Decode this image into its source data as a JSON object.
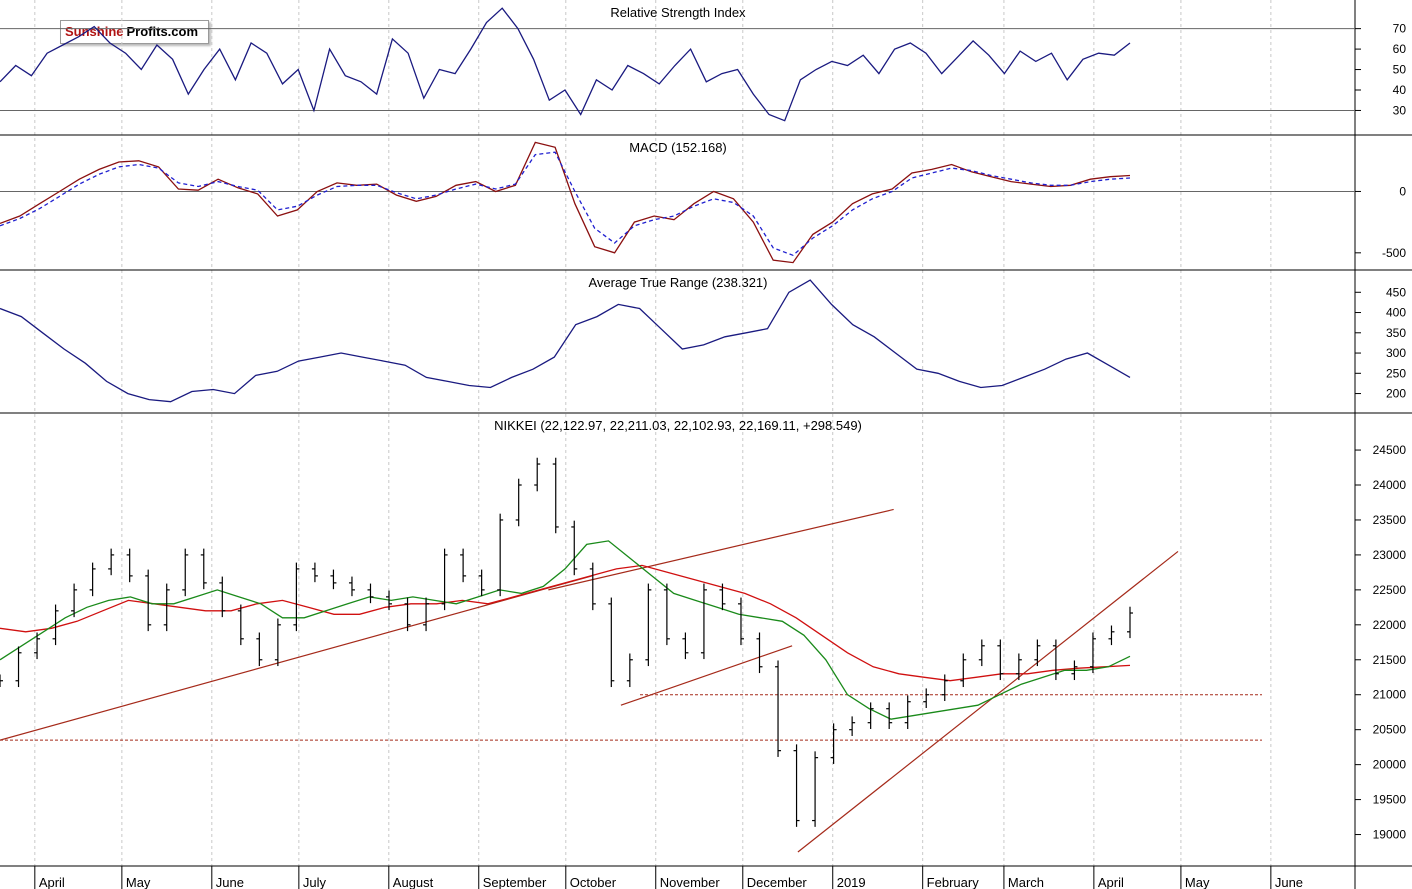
{
  "logo": {
    "part1": "Sunshine",
    "part2": "Profits.com"
  },
  "colors": {
    "rsi": "#1a1a80",
    "macd": "#8b1010",
    "macd_signal": "#2020d0",
    "atr": "#1a1a80",
    "ma_short": "#1a8a1a",
    "ma_long": "#d01010",
    "trendline": "#a52a1a",
    "bars": "#000000"
  },
  "x_axis": {
    "labels": [
      "April",
      "May",
      "June",
      "July",
      "August",
      "September",
      "October",
      "November",
      "December",
      "2019",
      "February",
      "March",
      "April",
      "May",
      "June"
    ]
  },
  "chart_data": [
    {
      "type": "line",
      "title": "Relative Strength Index",
      "y_ticks": [
        "70",
        "60",
        "50",
        "40",
        "30"
      ],
      "ylim": [
        18,
        84
      ],
      "reference_lines": [
        70,
        30
      ],
      "series": [
        {
          "values": [
            44,
            52,
            47,
            58,
            62,
            66,
            71,
            63,
            58,
            50,
            62,
            55,
            38,
            50,
            60,
            45,
            63,
            58,
            43,
            50,
            30,
            60,
            47,
            44,
            38,
            65,
            58,
            36,
            50,
            48,
            60,
            73,
            80,
            70,
            55,
            35,
            40,
            28,
            45,
            40,
            52,
            48,
            43,
            52,
            60,
            44,
            48,
            50,
            38,
            28,
            25,
            45,
            50,
            54,
            52,
            57,
            48,
            60,
            63,
            58,
            48,
            56,
            64,
            57,
            48,
            59,
            54,
            58,
            45,
            55,
            58,
            57,
            63
          ]
        }
      ]
    },
    {
      "type": "line",
      "title": "MACD (152.168)",
      "y_ticks": [
        "0",
        "-500"
      ],
      "ylim": [
        -640,
        460
      ],
      "series": [
        {
          "values": [
            -260,
            -200,
            -100,
            0,
            100,
            180,
            240,
            250,
            200,
            20,
            10,
            100,
            30,
            -20,
            -200,
            -150,
            0,
            70,
            50,
            60,
            -30,
            -80,
            -40,
            50,
            80,
            0,
            50,
            400,
            360,
            -100,
            -450,
            -500,
            -250,
            -200,
            -230,
            -100,
            0,
            -60,
            -250,
            -560,
            -580,
            -350,
            -250,
            -100,
            -20,
            20,
            150,
            180,
            220,
            160,
            120,
            80,
            60,
            40,
            50,
            100,
            120,
            130
          ]
        },
        {
          "values": [
            -280,
            -220,
            -140,
            -40,
            60,
            140,
            200,
            220,
            190,
            70,
            40,
            80,
            40,
            10,
            -150,
            -120,
            -30,
            40,
            50,
            50,
            -10,
            -60,
            -30,
            20,
            60,
            20,
            60,
            300,
            320,
            0,
            -300,
            -420,
            -280,
            -230,
            -200,
            -120,
            -60,
            -90,
            -200,
            -460,
            -520,
            -380,
            -280,
            -150,
            -60,
            0,
            110,
            150,
            190,
            170,
            130,
            100,
            70,
            50,
            50,
            80,
            100,
            110
          ]
        }
      ]
    },
    {
      "type": "line",
      "title": "Average True Range (238.321)",
      "y_ticks": [
        "450",
        "400",
        "350",
        "300",
        "250",
        "200"
      ],
      "ylim": [
        152,
        505
      ],
      "series": [
        {
          "values": [
            410,
            390,
            350,
            310,
            275,
            230,
            200,
            185,
            180,
            205,
            210,
            200,
            245,
            255,
            280,
            290,
            300,
            290,
            280,
            270,
            240,
            230,
            220,
            215,
            240,
            260,
            290,
            370,
            390,
            420,
            410,
            360,
            310,
            320,
            340,
            350,
            360,
            450,
            480,
            420,
            370,
            340,
            300,
            260,
            250,
            230,
            215,
            220,
            240,
            260,
            285,
            300,
            270,
            240
          ]
        }
      ]
    },
    {
      "type": "bar",
      "title": "NIKKEI (22,122.97, 22,211.03, 22,102.93, 22,169.11, +298.549)",
      "y_ticks": [
        "24500",
        "24000",
        "23500",
        "23000",
        "22500",
        "22000",
        "21500",
        "21000",
        "20500",
        "20000",
        "19500",
        "19000"
      ],
      "ylim": [
        18550,
        25030
      ],
      "close": [
        21200,
        21600,
        21800,
        22200,
        22500,
        22800,
        23000,
        22700,
        22000,
        22500,
        23000,
        22600,
        22200,
        21800,
        21500,
        22000,
        22800,
        22700,
        22600,
        22500,
        22400,
        22300,
        22000,
        22300,
        23000,
        22700,
        22500,
        23500,
        24000,
        24300,
        23400,
        22800,
        22300,
        21200,
        21500,
        22500,
        21800,
        21600,
        22500,
        22300,
        21800,
        21400,
        20200,
        19200,
        20100,
        20500,
        20600,
        20800,
        20600,
        20900,
        21000,
        21200,
        21500,
        21700,
        21300,
        21500,
        21700,
        21300,
        21400,
        21800,
        21900,
        22169
      ],
      "ma_short": [
        21500,
        21700,
        21900,
        22100,
        22250,
        22350,
        22400,
        22300,
        22300,
        22400,
        22500,
        22400,
        22300,
        22100,
        22100,
        22200,
        22300,
        22400,
        22350,
        22400,
        22350,
        22300,
        22400,
        22500,
        22450,
        22550,
        22800,
        23150,
        23200,
        22950,
        22700,
        22450,
        22350,
        22250,
        22150,
        22100,
        22050,
        21850,
        21500,
        21000,
        20800,
        20650,
        20700,
        20750,
        20800,
        20850,
        21000,
        21150,
        21250,
        21350,
        21350,
        21400,
        21550
      ],
      "ma_long": [
        21950,
        21900,
        21950,
        22050,
        22200,
        22350,
        22300,
        22250,
        22200,
        22200,
        22300,
        22350,
        22250,
        22150,
        22150,
        22250,
        22300,
        22300,
        22350,
        22300,
        22400,
        22500,
        22600,
        22700,
        22800,
        22850,
        22750,
        22650,
        22550,
        22450,
        22300,
        22100,
        21850,
        21600,
        21400,
        21300,
        21250,
        21200,
        21250,
        21300,
        21300,
        21350,
        21380,
        21400,
        21420
      ],
      "trendlines": [
        {
          "from": [
            "2018-03-20",
            20350
          ],
          "to": [
            "2018-10-10",
            22700
          ]
        },
        {
          "from": [
            "2018-09-25",
            22500
          ],
          "to": [
            "2019-01-22",
            23650
          ]
        },
        {
          "from": [
            "2018-10-20",
            20850
          ],
          "to": [
            "2018-12-18",
            21700
          ]
        },
        {
          "from": [
            "2018-12-20",
            18750
          ],
          "to": [
            "2019-04-30",
            23050
          ]
        }
      ],
      "support_lines": [
        20350,
        21000
      ]
    }
  ]
}
